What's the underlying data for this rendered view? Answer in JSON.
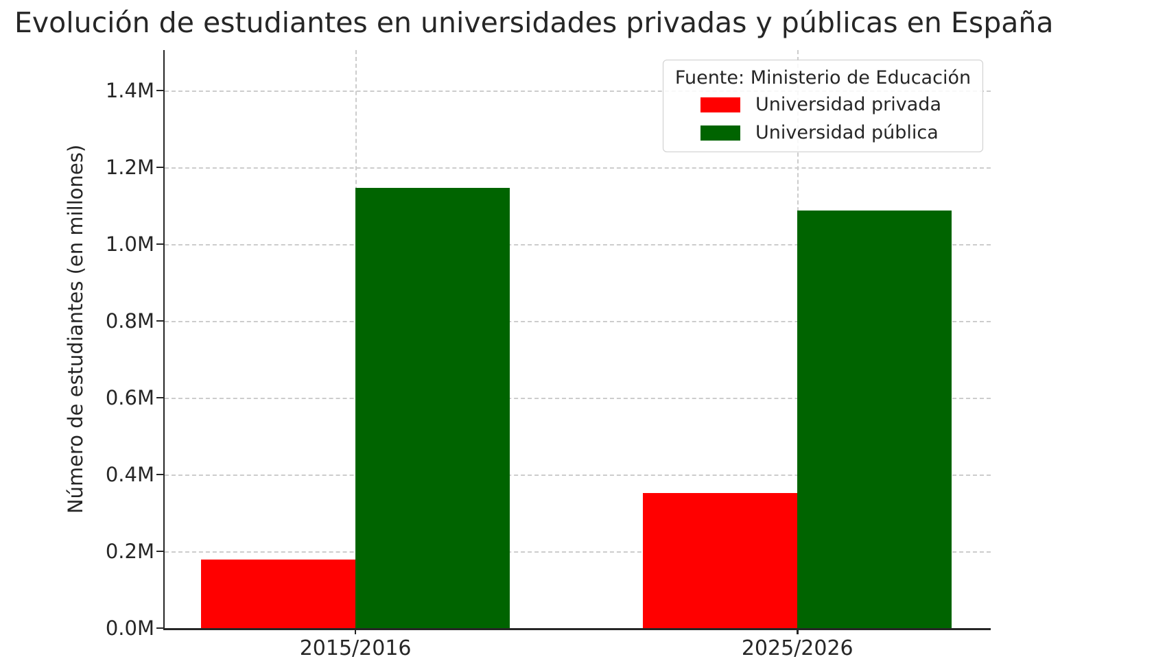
{
  "chart_data": {
    "type": "bar",
    "title": "Evolución de estudiantes en universidades privadas y públicas en España",
    "ylabel": "Número de estudiantes (en millones)",
    "xlabel": "",
    "unit": "millions of students",
    "categories": [
      "2015/2016",
      "2025/2026"
    ],
    "series": [
      {
        "name": "Universidad privada",
        "color": "#ff0000",
        "values": [
          0.178,
          0.352
        ]
      },
      {
        "name": "Universidad pública",
        "color": "#006400",
        "values": [
          1.146,
          1.088
        ]
      }
    ],
    "yticks": [
      {
        "value": 0.0,
        "label": "0.0M"
      },
      {
        "value": 0.2,
        "label": "0.2M"
      },
      {
        "value": 0.4,
        "label": "0.4M"
      },
      {
        "value": 0.6,
        "label": "0.6M"
      },
      {
        "value": 0.8,
        "label": "0.8M"
      },
      {
        "value": 1.0,
        "label": "1.0M"
      },
      {
        "value": 1.2,
        "label": "1.2M"
      },
      {
        "value": 1.4,
        "label": "1.4M"
      }
    ],
    "ylim": [
      0,
      1.505
    ],
    "grid": {
      "show": true,
      "style": "dashed",
      "color": "#cccccc"
    },
    "legend": {
      "title": "Fuente: Ministerio de Educación",
      "position": "upper right"
    },
    "colors": {
      "axis": "#262626",
      "text": "#262626",
      "background": "#ffffff"
    }
  }
}
